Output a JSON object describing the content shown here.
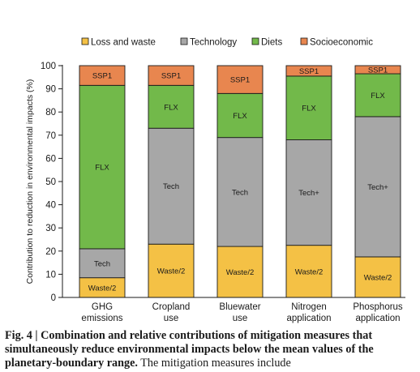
{
  "chart_data": {
    "type": "bar",
    "stacked": true,
    "ylabel": "Contribution to reduction in environmental impacts (%)",
    "ylim": [
      0,
      100
    ],
    "yticks": [
      0,
      10,
      20,
      30,
      40,
      50,
      60,
      70,
      80,
      90,
      100
    ],
    "categories": [
      [
        "GHG",
        "emissions"
      ],
      [
        "Cropland",
        "use"
      ],
      [
        "Bluewater",
        "use"
      ],
      [
        "Nitrogen",
        "application"
      ],
      [
        "Phosphorus",
        "application"
      ]
    ],
    "series": [
      {
        "name": "Loss and waste",
        "color": "#f4c145",
        "values": [
          8.5,
          23,
          22,
          22.5,
          17.5
        ],
        "labels": [
          "Waste/2",
          "Waste/2",
          "Waste/2",
          "Waste/2",
          "Waste/2"
        ]
      },
      {
        "name": "Technology",
        "color": "#a7a7a7",
        "values": [
          12.5,
          50,
          47,
          45.5,
          60.5
        ],
        "labels": [
          "Tech",
          "Tech",
          "Tech",
          "Tech+",
          "Tech+"
        ]
      },
      {
        "name": "Diets",
        "color": "#72b94a",
        "values": [
          70.5,
          18.5,
          19,
          27.5,
          18.5
        ],
        "labels": [
          "FLX",
          "FLX",
          "FLX",
          "FLX",
          "FLX"
        ]
      },
      {
        "name": "Socioeconomic",
        "color": "#e8864f",
        "values": [
          8.5,
          8.5,
          12,
          4.5,
          3.5
        ],
        "labels": [
          "SSP1",
          "SSP1",
          "SSP1",
          "SSP1",
          "SSP1"
        ]
      }
    ],
    "legend_position": "top",
    "grid": false
  },
  "caption": {
    "bold": "Fig. 4 | Combination and relative contributions of mitigation measures that simultaneously reduce environmental impacts below the mean values of the planetary-boundary range.",
    "rest": " The mitigation measures include"
  }
}
